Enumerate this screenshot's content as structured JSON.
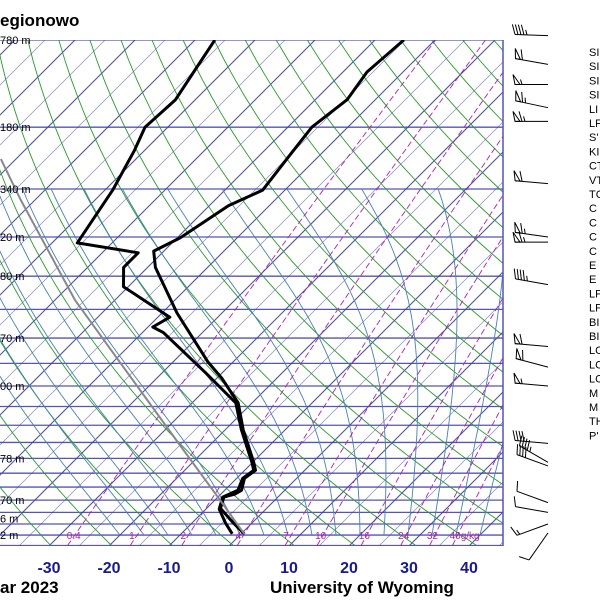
{
  "chart_data": {
    "type": "skewt",
    "title": "egionowo",
    "footer_left": "ar 2023",
    "footer_right": "University of Wyoming",
    "xlabel": "",
    "ylabel": "",
    "x_ticks": [
      -30,
      -20,
      -10,
      0,
      10,
      20,
      30,
      40
    ],
    "xlim_at_bottom": [
      -38,
      46
    ],
    "ylim_hpa": [
      1050,
      100
    ],
    "grid": true,
    "colors": {
      "isobar": "#5555b5",
      "isotherm": "#3a3ab8",
      "dry_adiabat": "#2a9a2a",
      "moist_adiabat": "#4a80b0",
      "mixing_ratio": "#b020b0",
      "profile": "#000000",
      "parcel": "#888888",
      "axis_text": "#1a1a8c"
    },
    "height_labels": [
      {
        "p": 100,
        "text": "780 m"
      },
      {
        "p": 150,
        "text": "180 m"
      },
      {
        "p": 200,
        "text": "340 m"
      },
      {
        "p": 250,
        "text": "20 m"
      },
      {
        "p": 300,
        "text": "80 m"
      },
      {
        "p": 400,
        "text": "70 m"
      },
      {
        "p": 500,
        "text": "00 m"
      },
      {
        "p": 700,
        "text": "78 m"
      },
      {
        "p": 850,
        "text": "70 m"
      },
      {
        "p": 925,
        "text": "6 m"
      },
      {
        "p": 1000,
        "text": "2 m"
      }
    ],
    "mixing_ratio_labels": [
      {
        "w": 0.4,
        "text": "0.4"
      },
      {
        "w": 1,
        "text": "1"
      },
      {
        "w": 2,
        "text": "2"
      },
      {
        "w": 4,
        "text": "4"
      },
      {
        "w": 7,
        "text": "7"
      },
      {
        "w": 10,
        "text": "10"
      },
      {
        "w": 16,
        "text": "16"
      },
      {
        "w": 24,
        "text": "24"
      },
      {
        "w": 32,
        "text": "32"
      },
      {
        "w": 40,
        "text": "40g/kg"
      }
    ],
    "series": [
      {
        "name": "temperature",
        "points": [
          [
            100,
            -55.2
          ],
          [
            116,
            -56
          ],
          [
            132,
            -54.7
          ],
          [
            150,
            -56
          ],
          [
            171,
            -55
          ],
          [
            201,
            -53.7
          ],
          [
            216,
            -56.8
          ],
          [
            251,
            -59.5
          ],
          [
            267,
            -61.7
          ],
          [
            288,
            -58.7
          ],
          [
            356,
            -47.5
          ],
          [
            447,
            -34.2
          ],
          [
            482,
            -29.2
          ],
          [
            541,
            -22.3
          ],
          [
            613,
            -17
          ],
          [
            715,
            -9.7
          ],
          [
            740,
            -8.2
          ],
          [
            768,
            -8.7
          ],
          [
            812,
            -7.2
          ],
          [
            827,
            -7.7
          ],
          [
            838,
            -9
          ],
          [
            883,
            -7.7
          ],
          [
            944,
            -3.2
          ],
          [
            994,
            0.5
          ]
        ]
      },
      {
        "name": "dewpoint",
        "points": [
          [
            100,
            -86.7
          ],
          [
            115,
            -85
          ],
          [
            132,
            -83.3
          ],
          [
            150,
            -83.8
          ],
          [
            167,
            -81.7
          ],
          [
            201,
            -78.7
          ],
          [
            257,
            -75.8
          ],
          [
            269,
            -64
          ],
          [
            288,
            -64
          ],
          [
            315,
            -60.8
          ],
          [
            363,
            -48
          ],
          [
            380,
            -49.2
          ],
          [
            390,
            -46.5
          ],
          [
            470,
            -32.8
          ],
          [
            541,
            -22.7
          ],
          [
            613,
            -17.3
          ],
          [
            715,
            -10
          ],
          [
            740,
            -8.5
          ],
          [
            768,
            -9
          ],
          [
            812,
            -7.8
          ],
          [
            838,
            -9.2
          ],
          [
            886,
            -7.8
          ],
          [
            944,
            -4.5
          ],
          [
            994,
            -1.5
          ]
        ]
      },
      {
        "name": "parcel",
        "points": [
          [
            994,
            0.5
          ],
          [
            838,
            -10
          ],
          [
            658,
            -25
          ],
          [
            476,
            -45
          ],
          [
            335,
            -66.7
          ],
          [
            210,
            -92.5
          ],
          [
            174,
            -102.5
          ]
        ]
      }
    ],
    "wind_barbs": [
      {
        "p": 98,
        "dir": 272,
        "kt": 45
      },
      {
        "p": 112,
        "dir": 280,
        "kt": 60
      },
      {
        "p": 123,
        "dir": 270,
        "kt": 55
      },
      {
        "p": 137,
        "dir": 282,
        "kt": 65
      },
      {
        "p": 146,
        "dir": 270,
        "kt": 65
      },
      {
        "p": 195,
        "dir": 275,
        "kt": 60
      },
      {
        "p": 250,
        "dir": 278,
        "kt": 65
      },
      {
        "p": 256,
        "dir": 270,
        "kt": 65
      },
      {
        "p": 312,
        "dir": 280,
        "kt": 45
      },
      {
        "p": 416,
        "dir": 275,
        "kt": 60
      },
      {
        "p": 458,
        "dir": 285,
        "kt": 60
      },
      {
        "p": 500,
        "dir": 275,
        "kt": 55
      },
      {
        "p": 653,
        "dir": 275,
        "kt": 40
      },
      {
        "p": 713,
        "dir": 300,
        "kt": 45
      },
      {
        "p": 725,
        "dir": 290,
        "kt": 40
      },
      {
        "p": 860,
        "dir": 290,
        "kt": 10
      },
      {
        "p": 900,
        "dir": 280,
        "kt": 10
      },
      {
        "p": 950,
        "dir": 250,
        "kt": 15
      },
      {
        "p": 990,
        "dir": 215,
        "kt": 10
      }
    ]
  },
  "indices": [
    "SI",
    "SI",
    "SI",
    "SI",
    "LI",
    "LF",
    "S'",
    "KI",
    "CT",
    "VT",
    "TC",
    "C",
    "C",
    "C",
    "C",
    "E",
    "E",
    "LF",
    "LF",
    "BI",
    "BI",
    "LC",
    "LC",
    "LC",
    "M",
    "M",
    "TH",
    "P'"
  ]
}
